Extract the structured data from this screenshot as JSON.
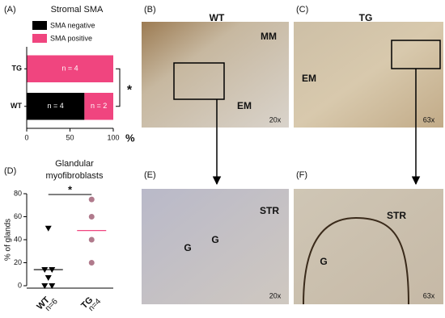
{
  "chart_data": [
    {
      "type": "bar",
      "orientation": "horizontal",
      "stacked": true,
      "panel_label": "(A)",
      "title": "Stromal SMA",
      "categories": [
        "TG",
        "WT"
      ],
      "series": [
        {
          "name": "SMA negative",
          "color": "#000000",
          "values": [
            0,
            66.7
          ],
          "segment_labels": [
            null,
            "n = 4"
          ]
        },
        {
          "name": "SMA positive",
          "color": "#f0457f",
          "values": [
            100,
            33.3
          ],
          "segment_labels": [
            "n = 4",
            "n = 2"
          ]
        }
      ],
      "xlim": [
        0,
        100
      ],
      "xticks": [
        0,
        50,
        100
      ],
      "xlabel": "%",
      "significance": "*"
    },
    {
      "type": "scatter",
      "panel_label": "(D)",
      "title": [
        "Glandular",
        "myofibroblasts"
      ],
      "categories": [
        "WT",
        "TG"
      ],
      "n_labels": [
        "n=6",
        "n=4"
      ],
      "series": [
        {
          "color": "#000000",
          "marker": "triangle",
          "values": [
            50,
            14,
            14,
            7,
            0,
            0
          ],
          "mean": 14,
          "mean_color": "#000000"
        },
        {
          "color": "#b07a8c",
          "marker": "circle",
          "values": [
            75,
            60,
            40,
            20
          ],
          "mean": 48,
          "mean_color": "#f0457f"
        }
      ],
      "ylim": [
        0,
        80
      ],
      "yticks": [
        0,
        20,
        40,
        60,
        80
      ],
      "ylabel": "% of glands",
      "significance": "*"
    }
  ],
  "panels": {
    "B": {
      "label": "(B)",
      "title": "WT",
      "annotations": [
        "MM",
        "EM"
      ],
      "magnification": "20x"
    },
    "C": {
      "label": "(C)",
      "title": "TG",
      "annotations": [
        "EM"
      ],
      "magnification": "63x"
    },
    "E": {
      "label": "(E)",
      "annotations": [
        "STR",
        "G",
        "G"
      ],
      "magnification": "20x"
    },
    "F": {
      "label": "(F)",
      "annotations": [
        "STR",
        "G"
      ],
      "magnification": "63x"
    }
  }
}
